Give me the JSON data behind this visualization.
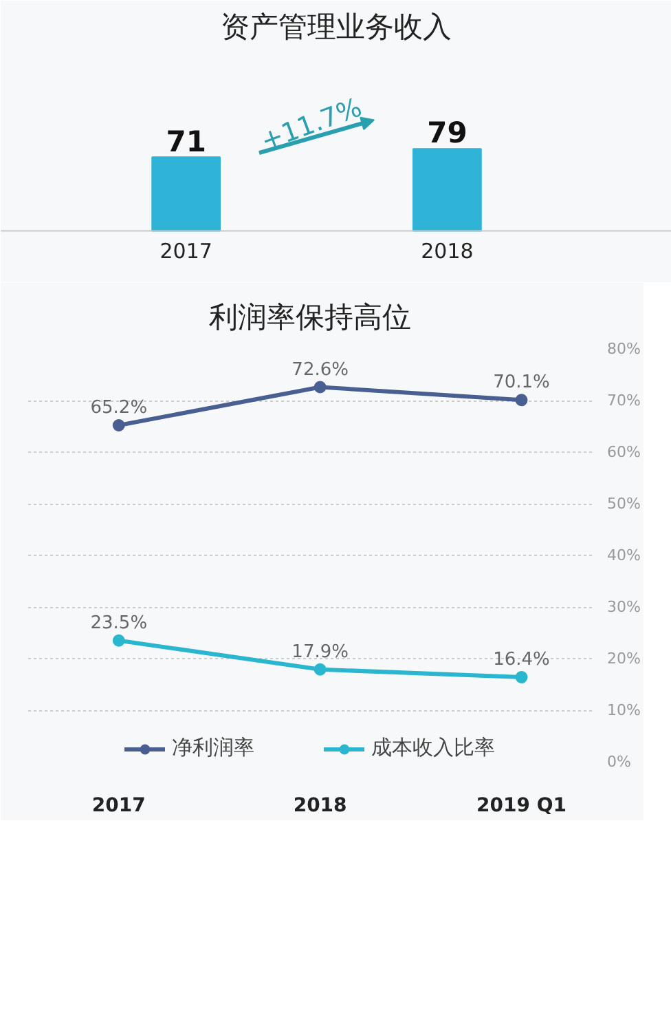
{
  "chart_data": [
    {
      "type": "bar",
      "title": "资产管理业务收入",
      "categories": [
        "2017",
        "2018"
      ],
      "values": [
        71,
        79
      ],
      "color": "#2fb3d6",
      "data_labels": true,
      "annotations": [
        "+11.7%"
      ]
    },
    {
      "type": "line",
      "title": "利润率保持高位",
      "categories": [
        "2017",
        "2018",
        "2019 Q1"
      ],
      "series": [
        {
          "name": "净利润率",
          "color": "#4a5f91",
          "values": [
            65.2,
            72.6,
            70.1
          ],
          "value_labels": [
            "65.2%",
            "72.6%",
            "70.1%"
          ]
        },
        {
          "name": "成本收入比率",
          "color": "#2bb6cf",
          "values": [
            23.5,
            17.9,
            16.4
          ],
          "value_labels": [
            "23.5%",
            "17.9%",
            "16.4%"
          ]
        }
      ],
      "ylim": [
        0,
        80
      ],
      "yticks": [
        {
          "value": 0,
          "label": "0%"
        },
        {
          "value": 10,
          "label": "10%"
        },
        {
          "value": 20,
          "label": "20%"
        },
        {
          "value": 30,
          "label": "30%"
        },
        {
          "value": 40,
          "label": "40%"
        },
        {
          "value": 50,
          "label": "50%"
        },
        {
          "value": 60,
          "label": "60%"
        },
        {
          "value": 70,
          "label": "70%"
        },
        {
          "value": 80,
          "label": "80%"
        }
      ],
      "grid": "y",
      "marker": "circle",
      "line_style": "solid",
      "legend": "bottom"
    }
  ]
}
